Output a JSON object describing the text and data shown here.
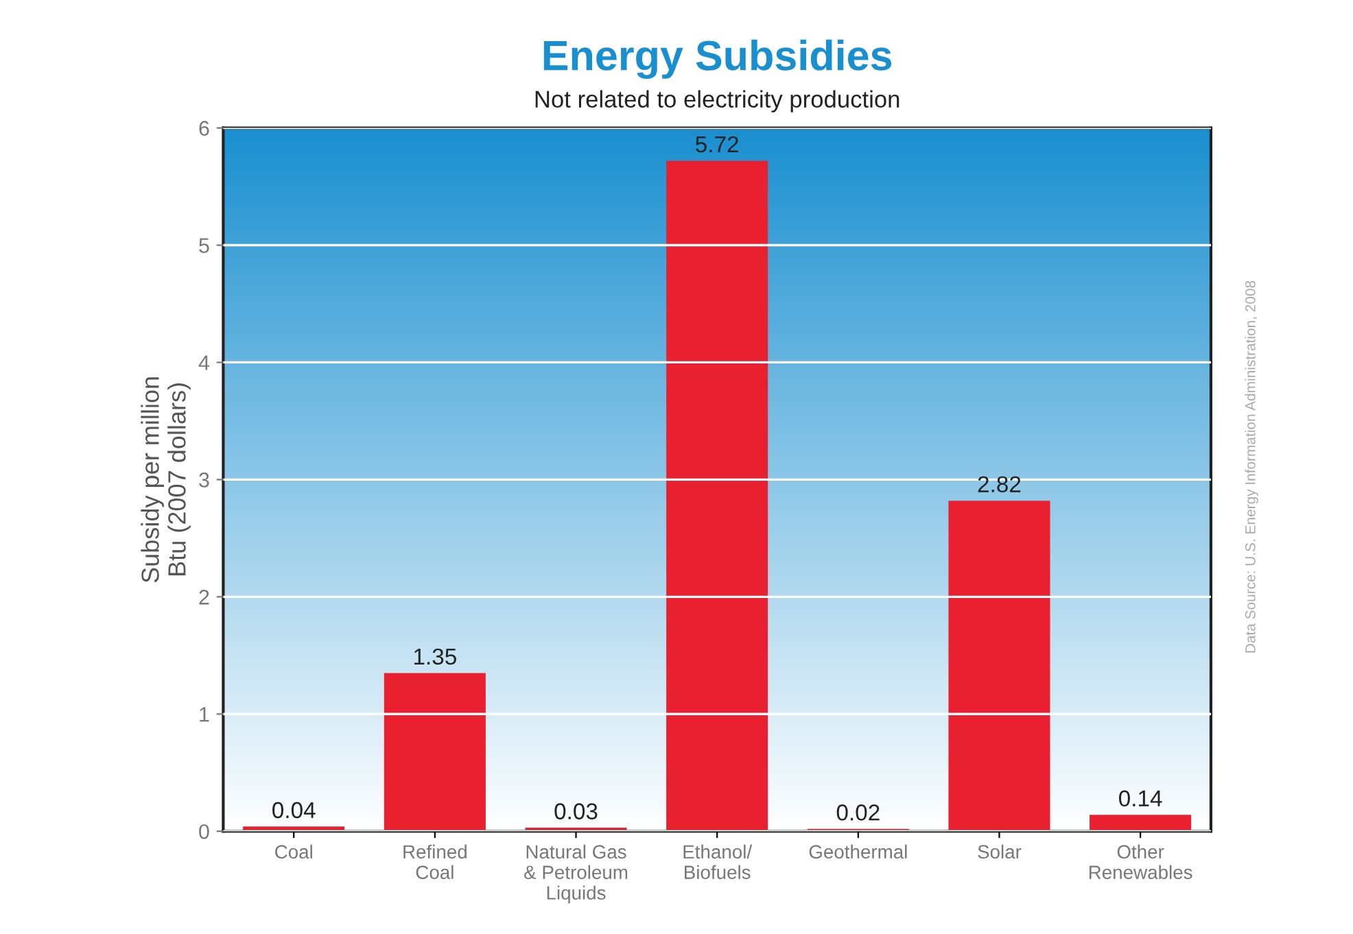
{
  "chart_data": {
    "type": "bar",
    "title": "Energy Subsidies",
    "subtitle": "Not related to electricity production",
    "ylabel": "Subsidy per million\nBtu (2007 dollars)",
    "categories": [
      "Coal",
      "Refined\nCoal",
      "Natural Gas\n& Petroleum\nLiquids",
      "Ethanol/\nBiofuels",
      "Geothermal",
      "Solar",
      "Other\nRenewables"
    ],
    "values": [
      0.04,
      1.35,
      0.03,
      5.72,
      0.02,
      2.82,
      0.14
    ],
    "color": "#e8202f",
    "ylim": [
      0,
      6
    ],
    "yticks": [
      0,
      1,
      2,
      3,
      4,
      5,
      6
    ],
    "grid": "y",
    "data_labels": true,
    "annotations": [
      "Data Source: U.S. Energy Information Administration, 2008"
    ]
  }
}
